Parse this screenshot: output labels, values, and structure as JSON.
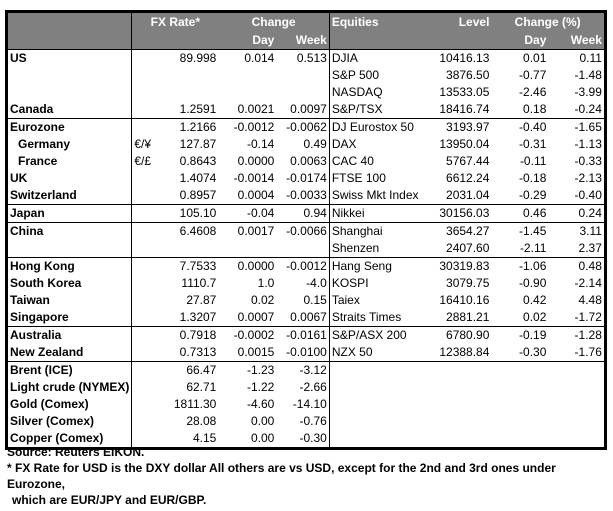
{
  "header": {
    "fx_rate": "FX Rate*",
    "change": "Change",
    "day": "Day",
    "week": "Week",
    "equities": "Equities",
    "level": "Level",
    "change_pct": "Change (%)",
    "day2": "Day",
    "week2": "Week"
  },
  "groups": [
    [
      {
        "name": "US",
        "sym": "",
        "fx": "89.998",
        "day": "0.014",
        "week": "0.513",
        "eq": "DJIA",
        "level": "10416.13",
        "eday": "0.01",
        "eweek": "0.11"
      },
      {
        "name": "",
        "sym": "",
        "fx": "",
        "day": "",
        "week": "",
        "eq": "S&P 500",
        "level": "3876.50",
        "eday": "-0.77",
        "eweek": "-1.48"
      },
      {
        "name": "",
        "sym": "",
        "fx": "",
        "day": "",
        "week": "",
        "eq": "NASDAQ",
        "level": "13533.05",
        "eday": "-2.46",
        "eweek": "-3.99"
      },
      {
        "name": "Canada",
        "sym": "",
        "fx": "1.2591",
        "day": "0.0021",
        "week": "0.0097",
        "eq": "S&P/TSX",
        "level": "18416.74",
        "eday": "0.18",
        "eweek": "-0.24"
      }
    ],
    [
      {
        "name": "Eurozone",
        "sym": "",
        "fx": "1.2166",
        "day": "-0.0012",
        "week": "-0.0062",
        "eq": "DJ Eurostox 50",
        "level": "3193.97",
        "eday": "-0.40",
        "eweek": "-1.65"
      },
      {
        "name": "Germany",
        "indent": true,
        "sym": "€/¥",
        "fx": "127.87",
        "day": "-0.14",
        "week": "0.49",
        "eq": "DAX",
        "level": "13950.04",
        "eday": "-0.31",
        "eweek": "-1.13"
      },
      {
        "name": "France",
        "indent": true,
        "sym": "€/£",
        "fx": "0.8643",
        "day": "0.0000",
        "week": "0.0063",
        "eq": "CAC 40",
        "level": "5767.44",
        "eday": "-0.11",
        "eweek": "-0.33"
      },
      {
        "name": "UK",
        "sym": "",
        "fx": "1.4074",
        "day": "-0.0014",
        "week": "-0.0174",
        "eq": "FTSE 100",
        "level": "6612.24",
        "eday": "-0.18",
        "eweek": "-2.13"
      },
      {
        "name": "Switzerland",
        "sym": "",
        "fx": "0.8957",
        "day": "0.0004",
        "week": "-0.0033",
        "eq": "Swiss Mkt Index",
        "level": "2031.04",
        "eday": "-0.29",
        "eweek": "-0.40"
      }
    ],
    [
      {
        "name": "Japan",
        "sym": "",
        "fx": "105.10",
        "day": "-0.04",
        "week": "0.94",
        "eq": "Nikkei",
        "level": "30156.03",
        "eday": "0.46",
        "eweek": "0.24"
      }
    ],
    [
      {
        "name": "China",
        "sym": "",
        "fx": "6.4608",
        "day": "0.0017",
        "week": "-0.0066",
        "eq": "Shanghai",
        "level": "3654.27",
        "eday": "-1.45",
        "eweek": "3.11"
      },
      {
        "name": "",
        "sym": "",
        "fx": "",
        "day": "",
        "week": "",
        "eq": "Shenzen",
        "level": "2407.60",
        "eday": "-2.11",
        "eweek": "2.37"
      }
    ],
    [
      {
        "name": "Hong Kong",
        "sym": "",
        "fx": "7.7533",
        "day": "0.0000",
        "week": "-0.0012",
        "eq": "Hang Seng",
        "level": "30319.83",
        "eday": "-1.06",
        "eweek": "0.48"
      },
      {
        "name": "South Korea",
        "sym": "",
        "fx": "1110.7",
        "day": "1.0",
        "week": "-4.0",
        "eq": "KOSPI",
        "level": "3079.75",
        "eday": "-0.90",
        "eweek": "-2.14"
      },
      {
        "name": "Taiwan",
        "sym": "",
        "fx": "27.87",
        "day": "0.02",
        "week": "0.15",
        "eq": "Taiex",
        "level": "16410.16",
        "eday": "0.42",
        "eweek": "4.48"
      },
      {
        "name": "Singapore",
        "sym": "",
        "fx": "1.3207",
        "day": "0.0007",
        "week": "0.0067",
        "eq": "Straits Times",
        "level": "2881.21",
        "eday": "0.02",
        "eweek": "-1.72"
      }
    ],
    [
      {
        "name": "Australia",
        "sym": "",
        "fx": "0.7918",
        "day": "-0.0002",
        "week": "-0.0161",
        "eq": "S&P/ASX  200",
        "level": "6780.90",
        "eday": "-0.19",
        "eweek": "-1.28"
      },
      {
        "name": "New Zealand",
        "sym": "",
        "fx": "0.7313",
        "day": "0.0015",
        "week": "-0.0100",
        "eq": "NZX 50",
        "level": "12388.84",
        "eday": "-0.30",
        "eweek": "-1.76"
      }
    ],
    [
      {
        "name": "Brent (ICE)",
        "sym": "",
        "fx": "66.47",
        "day": "-1.23",
        "week": "-3.12",
        "eq": "",
        "level": "",
        "eday": "",
        "eweek": ""
      },
      {
        "name": "Light crude (NYMEX)",
        "sym": "",
        "fx": "62.71",
        "day": "-1.22",
        "week": "-2.66",
        "eq": "",
        "level": "",
        "eday": "",
        "eweek": ""
      },
      {
        "name": "Gold (Comex)",
        "sym": "",
        "fx": "1811.30",
        "day": "-4.60",
        "week": "-14.10",
        "eq": "",
        "level": "",
        "eday": "",
        "eweek": ""
      },
      {
        "name": "Silver (Comex)",
        "sym": "",
        "fx": "28.08",
        "day": "0.00",
        "week": "-0.76",
        "eq": "",
        "level": "",
        "eday": "",
        "eweek": ""
      },
      {
        "name": "Copper (Comex)",
        "sym": "",
        "fx": "4.15",
        "day": "0.00",
        "week": "-0.30",
        "eq": "",
        "level": "",
        "eday": "",
        "eweek": ""
      }
    ]
  ],
  "footer": {
    "source": "Source:  Reuters EIKON.",
    "note1": "* FX Rate for USD is the DXY dollar  All others are vs USD, except for the 2nd and 3rd ones under Eurozone,",
    "note2": "which are EUR/JPY and EUR/GBP."
  }
}
